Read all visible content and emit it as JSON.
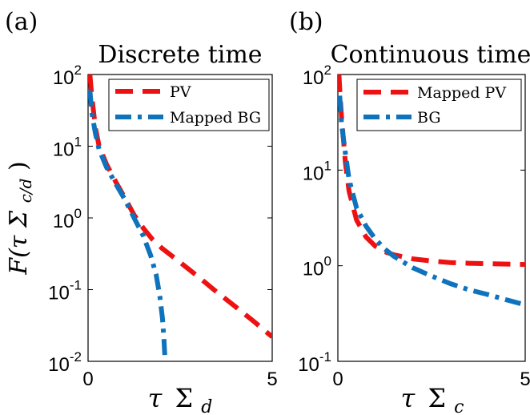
{
  "chart_data": [
    {
      "panel_label": "(a)",
      "type": "line",
      "title": "Discrete time",
      "xlabel_symbol": "τ",
      "xlabel_sigma": "Σ",
      "xlabel_sub": "d",
      "ylabel_main": "F(τ Σ",
      "ylabel_sub": "c/d",
      "ylabel_close": ")",
      "xlim": [
        0,
        5
      ],
      "ylim": [
        0.01,
        100
      ],
      "y_scale": "log",
      "x_ticks": [
        {
          "value": 0,
          "label": "0"
        },
        {
          "value": 5,
          "label": "5"
        }
      ],
      "y_ticks": [
        {
          "value": 100,
          "base": "10",
          "exp": "2"
        },
        {
          "value": 10,
          "base": "10",
          "exp": "1"
        },
        {
          "value": 1,
          "base": "10",
          "exp": "0"
        },
        {
          "value": 0.1,
          "base": "10",
          "exp": "-1"
        },
        {
          "value": 0.01,
          "base": "10",
          "exp": "-2"
        }
      ],
      "legend_position": "top-right",
      "series": [
        {
          "name": "PV",
          "color": "#ee1111",
          "style": "dashed",
          "x": [
            0.05,
            0.1,
            0.2,
            0.3,
            0.5,
            0.75,
            1.0,
            1.25,
            1.5,
            1.75,
            2.0,
            2.5,
            3.0,
            3.5,
            4.0,
            4.5,
            5.0
          ],
          "y": [
            100,
            50,
            18,
            10,
            5.6,
            3.2,
            1.9,
            1.1,
            0.72,
            0.5,
            0.38,
            0.24,
            0.15,
            0.092,
            0.058,
            0.036,
            0.022
          ]
        },
        {
          "name": "Mapped BG",
          "color": "#0f72bd",
          "style": "dashdot",
          "x": [
            0.05,
            0.1,
            0.2,
            0.3,
            0.5,
            0.75,
            1.0,
            1.25,
            1.5,
            1.7,
            1.85,
            1.95,
            2.02,
            2.06,
            2.08,
            2.1
          ],
          "y": [
            60,
            30,
            15,
            9,
            5.1,
            3.0,
            1.8,
            1.0,
            0.56,
            0.3,
            0.16,
            0.08,
            0.04,
            0.02,
            0.013,
            0.01
          ]
        }
      ]
    },
    {
      "panel_label": "(b)",
      "type": "line",
      "title": "Continuous time",
      "xlabel_symbol": "τ",
      "xlabel_sigma": "Σ",
      "xlabel_sub": "c",
      "xlim": [
        0,
        5
      ],
      "ylim": [
        0.1,
        100
      ],
      "y_scale": "log",
      "x_ticks": [
        {
          "value": 0,
          "label": "0"
        },
        {
          "value": 5,
          "label": "5"
        }
      ],
      "y_ticks": [
        {
          "value": 100,
          "base": "10",
          "exp": "2"
        },
        {
          "value": 10,
          "base": "10",
          "exp": "1"
        },
        {
          "value": 1,
          "base": "10",
          "exp": "0"
        },
        {
          "value": 0.1,
          "base": "10",
          "exp": "-1"
        }
      ],
      "legend_position": "top-right",
      "series": [
        {
          "name": "Mapped PV",
          "color": "#ee1111",
          "style": "dashed",
          "x": [
            0.03,
            0.06,
            0.1,
            0.2,
            0.3,
            0.5,
            0.75,
            1.0,
            1.25,
            1.5,
            2.0,
            2.5,
            3.0,
            3.5,
            4.0,
            4.5,
            5.0
          ],
          "y": [
            100,
            60,
            35,
            12,
            6.0,
            3.0,
            2.0,
            1.6,
            1.4,
            1.3,
            1.18,
            1.12,
            1.08,
            1.06,
            1.05,
            1.04,
            1.03
          ]
        },
        {
          "name": "BG",
          "color": "#0f72bd",
          "style": "dashdot",
          "x": [
            0.05,
            0.1,
            0.2,
            0.3,
            0.5,
            0.75,
            1.0,
            1.25,
            1.5,
            2.0,
            2.5,
            3.0,
            3.5,
            4.0,
            4.5,
            5.0
          ],
          "y": [
            60,
            30,
            15,
            8,
            4.0,
            2.6,
            1.9,
            1.5,
            1.25,
            0.95,
            0.78,
            0.65,
            0.56,
            0.5,
            0.44,
            0.39
          ]
        }
      ]
    }
  ]
}
